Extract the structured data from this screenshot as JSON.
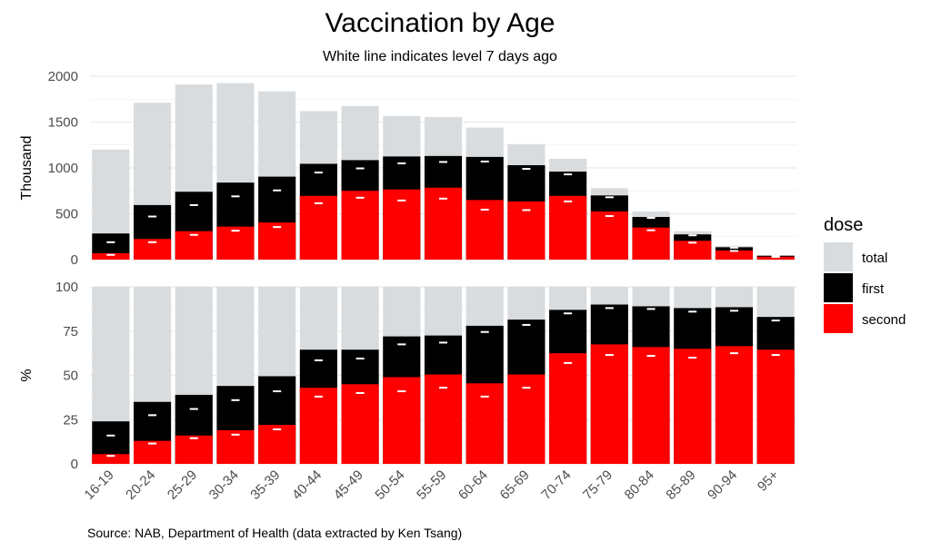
{
  "chart_data": {
    "type": "bar",
    "title": "Vaccination by Age",
    "subtitle": "White line indicates level 7 days ago",
    "caption": "Source: NAB, Department of Health (data extracted by Ken Tsang)",
    "categories": [
      "16-19",
      "20-24",
      "25-29",
      "30-34",
      "35-39",
      "40-44",
      "45-49",
      "50-54",
      "55-59",
      "60-64",
      "65-69",
      "70-74",
      "75-79",
      "80-84",
      "85-89",
      "90-94",
      "95+"
    ],
    "legend": {
      "title": "dose",
      "placement": "right",
      "items": [
        {
          "label": "total",
          "color": "#d9dcde"
        },
        {
          "label": "first",
          "color": "#000000"
        },
        {
          "label": "second",
          "color": "#ff0000"
        }
      ]
    },
    "colors": {
      "total": "#d9dcde",
      "first": "#000000",
      "second": "#ff0000",
      "marker": "#ffffff",
      "grid": "#ebebeb"
    },
    "panels": [
      {
        "ylabel": "Thousand",
        "ylim": [
          0,
          2000
        ],
        "yticks": [
          0,
          500,
          1000,
          1500,
          2000
        ],
        "series": [
          {
            "name": "total",
            "values": [
              1200,
              1710,
              1910,
              1925,
              1835,
              1620,
              1675,
              1565,
              1555,
              1440,
              1260,
              1100,
              780,
              525,
              310,
              150,
              50
            ]
          },
          {
            "name": "first",
            "values": [
              285,
              595,
              740,
              840,
              905,
              1045,
              1085,
              1125,
              1130,
              1120,
              1030,
              960,
              700,
              465,
              275,
              135,
              42
            ]
          },
          {
            "name": "second",
            "values": [
              70,
              225,
              310,
              360,
              405,
              695,
              750,
              765,
              785,
              650,
              635,
              695,
              525,
              350,
              205,
              100,
              32
            ]
          }
        ],
        "previous": {
          "first": [
            190,
            470,
            595,
            690,
            755,
            950,
            995,
            1050,
            1065,
            1070,
            990,
            930,
            680,
            455,
            265,
            130,
            40
          ],
          "second": [
            52,
            190,
            270,
            315,
            355,
            615,
            675,
            645,
            665,
            545,
            540,
            635,
            475,
            320,
            185,
            95,
            30
          ]
        }
      },
      {
        "ylabel": "%",
        "ylim": [
          0,
          100
        ],
        "yticks": [
          0,
          25,
          50,
          75,
          100
        ],
        "series": [
          {
            "name": "total",
            "values": [
              100,
              100,
              100,
              100,
              100,
              100,
              100,
              100,
              100,
              100,
              100,
              100,
              100,
              100,
              100,
              100,
              100
            ]
          },
          {
            "name": "first",
            "values": [
              24,
              35,
              39,
              44,
              49.5,
              64.5,
              64.5,
              72,
              72.5,
              78,
              81.5,
              87,
              90,
              89,
              88,
              88.5,
              83
            ]
          },
          {
            "name": "second",
            "values": [
              5.5,
              13,
              16,
              19,
              22,
              43,
              45,
              49,
              50.5,
              45.5,
              50.5,
              62.5,
              67.5,
              66,
              65,
              66.5,
              64.5
            ]
          }
        ],
        "previous": {
          "first": [
            16,
            27.5,
            31,
            36,
            41,
            58.5,
            59.5,
            67.5,
            68.5,
            74.5,
            78.5,
            85,
            88,
            87.5,
            86,
            86.5,
            81
          ],
          "second": [
            4.5,
            11.5,
            14.5,
            16.5,
            19.5,
            38,
            40,
            41,
            43,
            38,
            43,
            57,
            61.5,
            61,
            60,
            62.5,
            61.5
          ]
        }
      }
    ]
  }
}
